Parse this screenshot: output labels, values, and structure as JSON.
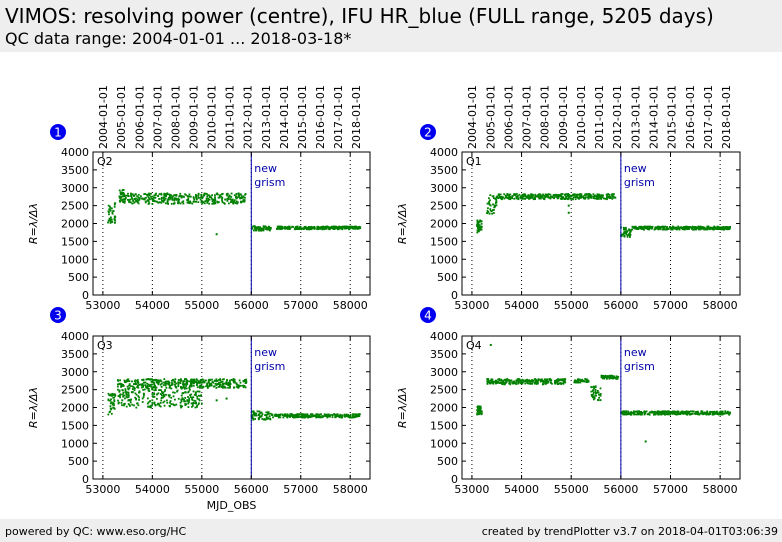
{
  "header": {
    "title": "VIMOS: resolving power (centre), IFU HR_blue (FULL range, 5205 days)",
    "subtitle": "QC data range: 2004-01-01 ... 2018-03-18*"
  },
  "footer": {
    "left": "powered by QC: www.eso.org/HC",
    "right": "created by trendPlotter v3.7 on 2018-04-01T03:06:39"
  },
  "colors": {
    "data": "#008000",
    "marker_line": "#0000aa",
    "badge": "#0000ee",
    "grid": "#000000"
  },
  "chart_data": [
    {
      "type": "scatter",
      "panel": "1",
      "label": "Q2",
      "xlabel": "",
      "ylabel": "R=λ/Δλ",
      "xlim": [
        52800,
        58400
      ],
      "ylim": [
        0,
        4000
      ],
      "xticks": [
        53000,
        54000,
        55000,
        56000,
        57000,
        58000
      ],
      "yticks": [
        0,
        500,
        1000,
        1500,
        2000,
        2500,
        3000,
        3500,
        4000
      ],
      "date_ticks": [
        "2004-01-01",
        "2005-01-01",
        "2006-01-01",
        "2007-01-01",
        "2008-01-01",
        "2009-01-01",
        "2010-01-01",
        "2011-01-01",
        "2012-01-01",
        "2013-01-01",
        "2014-01-01",
        "2015-01-01",
        "2016-01-01",
        "2017-01-01",
        "2018-01-01"
      ],
      "date_mjd": [
        53005,
        53371,
        53736,
        54101,
        54466,
        54832,
        55197,
        55562,
        55927,
        56293,
        56658,
        57023,
        57388,
        57754,
        58119
      ],
      "vline": {
        "x": 56000,
        "label": [
          "new",
          "grism"
        ]
      },
      "segments": [
        {
          "x": [
            53100,
            53250
          ],
          "y": [
            2000,
            2600
          ]
        },
        {
          "x": [
            53330,
            53430
          ],
          "y": [
            2600,
            2950
          ]
        },
        {
          "x": [
            53430,
            55900
          ],
          "y": [
            2550,
            2850
          ]
        },
        {
          "x": [
            56000,
            56400
          ],
          "y": [
            1800,
            1930
          ]
        },
        {
          "x": [
            56500,
            58200
          ],
          "y": [
            1840,
            1920
          ]
        }
      ],
      "outliers": [
        {
          "x": 55000,
          "y": 2600
        },
        {
          "x": 55300,
          "y": 1700
        },
        {
          "x": 55100,
          "y": 2700
        }
      ]
    },
    {
      "type": "scatter",
      "panel": "2",
      "label": "Q1",
      "xlabel": "",
      "ylabel": "R=λ/Δλ",
      "xlim": [
        52800,
        58400
      ],
      "ylim": [
        0,
        4000
      ],
      "xticks": [
        53000,
        54000,
        55000,
        56000,
        57000,
        58000
      ],
      "yticks": [
        0,
        500,
        1000,
        1500,
        2000,
        2500,
        3000,
        3500,
        4000
      ],
      "date_ticks": [
        "2004-01-01",
        "2005-01-01",
        "2006-01-01",
        "2007-01-01",
        "2008-01-01",
        "2009-01-01",
        "2010-01-01",
        "2011-01-01",
        "2012-01-01",
        "2013-01-01",
        "2014-01-01",
        "2015-01-01",
        "2016-01-01",
        "2017-01-01",
        "2018-01-01"
      ],
      "date_mjd": [
        53005,
        53371,
        53736,
        54101,
        54466,
        54832,
        55197,
        55562,
        55927,
        56293,
        56658,
        57023,
        57388,
        57754,
        58119
      ],
      "vline": {
        "x": 56000,
        "label": [
          "new",
          "grism"
        ]
      },
      "segments": [
        {
          "x": [
            53100,
            53200
          ],
          "y": [
            1750,
            2100
          ]
        },
        {
          "x": [
            53300,
            53500
          ],
          "y": [
            2250,
            2800
          ]
        },
        {
          "x": [
            53500,
            55900
          ],
          "y": [
            2680,
            2830
          ]
        },
        {
          "x": [
            56000,
            56200
          ],
          "y": [
            1600,
            1900
          ]
        },
        {
          "x": [
            56200,
            58200
          ],
          "y": [
            1830,
            1920
          ]
        }
      ],
      "outliers": [
        {
          "x": 54950,
          "y": 2300
        },
        {
          "x": 54950,
          "y": 2500
        }
      ]
    },
    {
      "type": "scatter",
      "panel": "3",
      "label": "Q3",
      "xlabel": "MJD_OBS",
      "ylabel": "R=λ/Δλ",
      "xlim": [
        52800,
        58400
      ],
      "ylim": [
        0,
        4000
      ],
      "xticks": [
        53000,
        54000,
        55000,
        56000,
        57000,
        58000
      ],
      "yticks": [
        0,
        500,
        1000,
        1500,
        2000,
        2500,
        3000,
        3500,
        4000
      ],
      "vline": {
        "x": 56000,
        "label": [
          "new",
          "grism"
        ]
      },
      "segments": [
        {
          "x": [
            53100,
            53250
          ],
          "y": [
            1800,
            2400
          ]
        },
        {
          "x": [
            53300,
            55900
          ],
          "y": [
            2550,
            2800
          ]
        },
        {
          "x": [
            53300,
            55000
          ],
          "y": [
            2000,
            2550
          ]
        },
        {
          "x": [
            56000,
            56400
          ],
          "y": [
            1650,
            1900
          ]
        },
        {
          "x": [
            56400,
            58200
          ],
          "y": [
            1720,
            1820
          ]
        }
      ],
      "outliers": [
        {
          "x": 55300,
          "y": 2200
        },
        {
          "x": 55500,
          "y": 2250
        }
      ]
    },
    {
      "type": "scatter",
      "panel": "4",
      "label": "Q4",
      "xlabel": "",
      "ylabel": "R=λ/Δλ",
      "xlim": [
        52800,
        58400
      ],
      "ylim": [
        0,
        4000
      ],
      "xticks": [
        53000,
        54000,
        55000,
        56000,
        57000,
        58000
      ],
      "yticks": [
        0,
        500,
        1000,
        1500,
        2000,
        2500,
        3000,
        3500,
        4000
      ],
      "vline": {
        "x": 56000,
        "label": [
          "new",
          "grism"
        ]
      },
      "segments": [
        {
          "x": [
            53100,
            53200
          ],
          "y": [
            1800,
            2050
          ]
        },
        {
          "x": [
            53300,
            54900
          ],
          "y": [
            2650,
            2800
          ]
        },
        {
          "x": [
            55050,
            55350
          ],
          "y": [
            2700,
            2800
          ]
        },
        {
          "x": [
            55400,
            55600
          ],
          "y": [
            2200,
            2600
          ]
        },
        {
          "x": [
            55600,
            55950
          ],
          "y": [
            2800,
            2900
          ]
        },
        {
          "x": [
            56000,
            58200
          ],
          "y": [
            1800,
            1900
          ]
        }
      ],
      "outliers": [
        {
          "x": 53380,
          "y": 3750
        },
        {
          "x": 56500,
          "y": 1050
        },
        {
          "x": 53650,
          "y": 2650
        }
      ]
    }
  ]
}
